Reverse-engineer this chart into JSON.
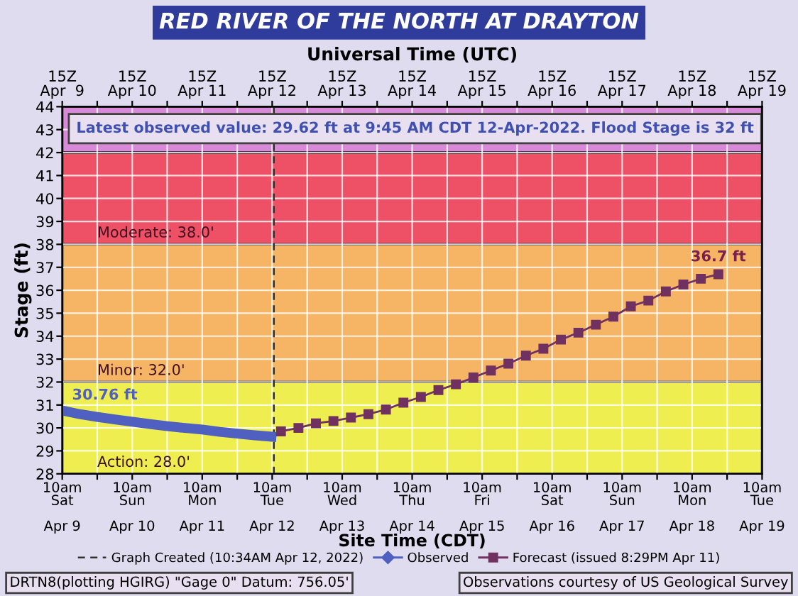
{
  "chart_data": {
    "type": "line",
    "title": "RED RIVER OF THE NORTH AT DRAYTON",
    "x2label": "Universal Time (UTC)",
    "xlabel": "Site Time (CDT)",
    "ylabel": "Stage (ft)",
    "xlim": [
      "2022-04-09T10:00",
      "2022-04-19T10:00"
    ],
    "ylim": [
      28,
      44
    ],
    "x2lim": [
      "2022-04-09T15:00",
      "2022-04-19T15:00"
    ],
    "xticks": [
      {
        "value": "2022-04-09T10:00",
        "label": "10am\nSat\n\nApr 9"
      },
      {
        "value": "2022-04-09T22:00",
        "label": null
      },
      {
        "value": "2022-04-10T10:00",
        "label": "10am\nSun\n\nApr 10"
      },
      {
        "value": "2022-04-10T22:00",
        "label": null
      },
      {
        "value": "2022-04-11T10:00",
        "label": "10am\nMon\n\nApr 11"
      },
      {
        "value": "2022-04-11T22:00",
        "label": null
      },
      {
        "value": "2022-04-12T10:00",
        "label": "10am\nTue\n\nApr 12"
      },
      {
        "value": "2022-04-12T22:00",
        "label": null
      },
      {
        "value": "2022-04-13T10:00",
        "label": "10am\nWed\n\nApr 13"
      },
      {
        "value": "2022-04-13T22:00",
        "label": null
      },
      {
        "value": "2022-04-14T10:00",
        "label": "10am\nThu\n\nApr 14"
      },
      {
        "value": "2022-04-14T22:00",
        "label": null
      },
      {
        "value": "2022-04-15T10:00",
        "label": "10am\nFri\n\nApr 15"
      },
      {
        "value": "2022-04-15T22:00",
        "label": null
      },
      {
        "value": "2022-04-16T10:00",
        "label": "10am\nSat\n\nApr 16"
      },
      {
        "value": "2022-04-16T22:00",
        "label": null
      },
      {
        "value": "2022-04-17T10:00",
        "label": "10am\nSun\n\nApr 17"
      },
      {
        "value": "2022-04-17T22:00",
        "label": null
      },
      {
        "value": "2022-04-18T10:00",
        "label": "10am\nMon\n\nApr 18"
      },
      {
        "value": "2022-04-18T22:00",
        "label": null
      },
      {
        "value": "2022-04-19T10:00",
        "label": "10am\nTue\n\nApr 19"
      }
    ],
    "x2ticks": [
      {
        "value": "2022-04-09T15:00",
        "label": "15Z\nApr  9"
      },
      {
        "value": "2022-04-10T03:00",
        "label": null
      },
      {
        "value": "2022-04-10T15:00",
        "label": "15Z\nApr 10"
      },
      {
        "value": "2022-04-11T03:00",
        "label": null
      },
      {
        "value": "2022-04-11T15:00",
        "label": "15Z\nApr 11"
      },
      {
        "value": "2022-04-12T03:00",
        "label": null
      },
      {
        "value": "2022-04-12T15:00",
        "label": "15Z\nApr 12"
      },
      {
        "value": "2022-04-13T03:00",
        "label": null
      },
      {
        "value": "2022-04-13T15:00",
        "label": "15Z\nApr 13"
      },
      {
        "value": "2022-04-14T03:00",
        "label": null
      },
      {
        "value": "2022-04-14T15:00",
        "label": "15Z\nApr 14"
      },
      {
        "value": "2022-04-15T03:00",
        "label": null
      },
      {
        "value": "2022-04-15T15:00",
        "label": "15Z\nApr 15"
      },
      {
        "value": "2022-04-16T03:00",
        "label": null
      },
      {
        "value": "2022-04-16T15:00",
        "label": "15Z\nApr 16"
      },
      {
        "value": "2022-04-17T03:00",
        "label": null
      },
      {
        "value": "2022-04-17T15:00",
        "label": "15Z\nApr 17"
      },
      {
        "value": "2022-04-18T03:00",
        "label": null
      },
      {
        "value": "2022-04-18T15:00",
        "label": "15Z\nApr 18"
      },
      {
        "value": "2022-04-19T03:00",
        "label": null
      },
      {
        "value": "2022-04-19T15:00",
        "label": "15Z\nApr 19"
      }
    ],
    "yticks": [
      28,
      29,
      30,
      31,
      32,
      33,
      34,
      35,
      36,
      37,
      38,
      39,
      40,
      41,
      42,
      43,
      44
    ],
    "grid": true,
    "legend": "bottom",
    "bands": [
      {
        "axis": "y",
        "from": 28,
        "to": 32,
        "color": "#eeee50",
        "label": "Action: 28.0'"
      },
      {
        "axis": "y",
        "from": 32,
        "to": 38,
        "color": "#f5b565",
        "label": "Minor: 32.0'"
      },
      {
        "axis": "y",
        "from": 38,
        "to": 42,
        "color": "#ee5066",
        "label": "Moderate: 38.0'"
      },
      {
        "axis": "y",
        "from": 42,
        "to": 44,
        "color": "#d88ad8"
      }
    ],
    "ref_lines": [
      {
        "axis": "x",
        "value": "2022-04-12T10:34",
        "label": "Graph Created (10:34AM Apr 12, 2022)",
        "color": "#303030",
        "line_style": "dashed"
      }
    ],
    "series": [
      {
        "name": "Observed",
        "color": "#5060c0",
        "marker": "none",
        "x": [
          "2022-04-09T10:00",
          "2022-04-09T16:00",
          "2022-04-09T22:00",
          "2022-04-10T04:00",
          "2022-04-10T10:00",
          "2022-04-10T16:00",
          "2022-04-10T22:00",
          "2022-04-11T04:00",
          "2022-04-11T10:00",
          "2022-04-11T16:00",
          "2022-04-11T22:00",
          "2022-04-12T04:00",
          "2022-04-12T09:45"
        ],
        "values": [
          30.76,
          30.6,
          30.48,
          30.37,
          30.27,
          30.17,
          30.08,
          30.0,
          29.93,
          29.83,
          29.75,
          29.68,
          29.62
        ]
      },
      {
        "name": "Forecast (issued 8:29PM Apr 11)",
        "color": "#703060",
        "marker": "square",
        "x": [
          "2022-04-12T13:00",
          "2022-04-12T19:00",
          "2022-04-13T01:00",
          "2022-04-13T07:00",
          "2022-04-13T13:00",
          "2022-04-13T19:00",
          "2022-04-14T01:00",
          "2022-04-14T07:00",
          "2022-04-14T13:00",
          "2022-04-14T19:00",
          "2022-04-15T01:00",
          "2022-04-15T07:00",
          "2022-04-15T13:00",
          "2022-04-15T19:00",
          "2022-04-16T01:00",
          "2022-04-16T07:00",
          "2022-04-16T13:00",
          "2022-04-16T19:00",
          "2022-04-17T01:00",
          "2022-04-17T07:00",
          "2022-04-17T13:00",
          "2022-04-17T19:00",
          "2022-04-18T01:00",
          "2022-04-18T07:00",
          "2022-04-18T13:00",
          "2022-04-18T19:00"
        ],
        "values": [
          29.85,
          30.0,
          30.2,
          30.3,
          30.45,
          30.6,
          30.8,
          31.1,
          31.35,
          31.65,
          31.9,
          32.2,
          32.5,
          32.8,
          33.15,
          33.45,
          33.85,
          34.15,
          34.5,
          34.85,
          35.3,
          35.55,
          35.95,
          36.25,
          36.5,
          36.7
        ]
      }
    ],
    "annotations": [
      {
        "text": "30.76 ft",
        "x": "2022-04-09T10:00",
        "y": 30.76
      },
      {
        "text": "36.7 ft",
        "x": "2022-04-18T19:00",
        "y": 36.7
      },
      "Latest observed value: 29.62 ft at 9:45 AM CDT 12-Apr-2022. Flood Stage is 32 ft",
      "DRTN8(plotting HGIRG) \"Gage 0\" Datum: 756.05'",
      "Observations courtesy of US Geological Survey"
    ]
  }
}
